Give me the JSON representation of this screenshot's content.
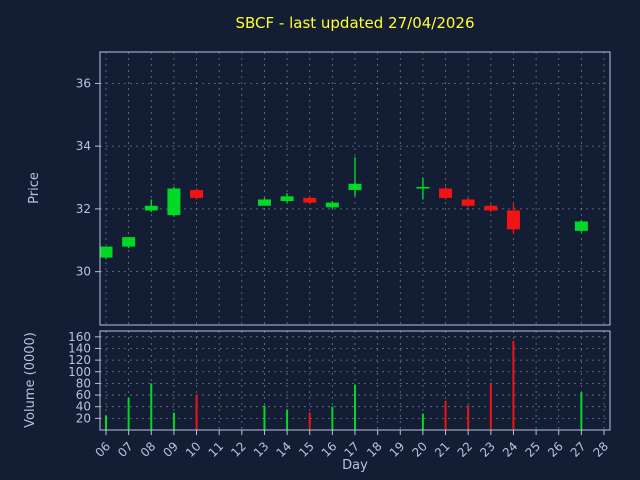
{
  "chart_data": {
    "type": "candlestick",
    "title": "SBCF - last updated 27/04/2026",
    "xlabel": "Day",
    "price_ylabel": "Price",
    "volume_ylabel": "Volume (0000)",
    "x_ticks": [
      "06",
      "07",
      "08",
      "09",
      "10",
      "11",
      "12",
      "13",
      "14",
      "15",
      "16",
      "17",
      "18",
      "19",
      "20",
      "21",
      "22",
      "23",
      "24",
      "25",
      "26",
      "27",
      "28"
    ],
    "price_ticks": [
      30,
      32,
      34,
      36
    ],
    "price_ylim": [
      28.3,
      37.0
    ],
    "volume_ticks": [
      20,
      40,
      60,
      80,
      100,
      120,
      140,
      160
    ],
    "volume_ylim": [
      0,
      170
    ],
    "grid": "dashed",
    "legend": null,
    "colors": {
      "background": "#131d33",
      "up": "#00d926",
      "down": "#f01414",
      "grid": "#8d96ab",
      "spine": "#b9c2de",
      "text": "#b9c2de",
      "title": "#ffff33"
    },
    "candles": [
      {
        "day": "06",
        "open": 30.45,
        "high": 30.8,
        "low": 30.4,
        "close": 30.8,
        "volume": 25
      },
      {
        "day": "07",
        "open": 30.8,
        "high": 31.1,
        "low": 30.75,
        "close": 31.1,
        "volume": 55
      },
      {
        "day": "08",
        "open": 31.95,
        "high": 32.3,
        "low": 31.9,
        "close": 32.1,
        "volume": 80
      },
      {
        "day": "09",
        "open": 31.8,
        "high": 32.7,
        "low": 31.75,
        "close": 32.65,
        "volume": 30
      },
      {
        "day": "10",
        "open": 32.6,
        "high": 32.65,
        "low": 32.3,
        "close": 32.35,
        "volume": 60
      },
      {
        "day": "13",
        "open": 32.1,
        "high": 32.35,
        "low": 32.1,
        "close": 32.3,
        "volume": 42
      },
      {
        "day": "14",
        "open": 32.25,
        "high": 32.5,
        "low": 32.2,
        "close": 32.4,
        "volume": 35
      },
      {
        "day": "15",
        "open": 32.35,
        "high": 32.4,
        "low": 32.15,
        "close": 32.2,
        "volume": 30
      },
      {
        "day": "16",
        "open": 32.05,
        "high": 32.25,
        "low": 32.0,
        "close": 32.2,
        "volume": 40
      },
      {
        "day": "17",
        "open": 32.6,
        "high": 33.65,
        "low": 32.4,
        "close": 32.8,
        "volume": 78
      },
      {
        "day": "20",
        "open": 32.65,
        "high": 33.0,
        "low": 32.3,
        "close": 32.7,
        "volume": 28
      },
      {
        "day": "21",
        "open": 32.65,
        "high": 32.7,
        "low": 32.3,
        "close": 32.35,
        "volume": 50
      },
      {
        "day": "22",
        "open": 32.3,
        "high": 32.35,
        "low": 32.05,
        "close": 32.1,
        "volume": 42
      },
      {
        "day": "23",
        "open": 32.1,
        "high": 32.15,
        "low": 31.9,
        "close": 31.95,
        "volume": 80
      },
      {
        "day": "24",
        "open": 31.95,
        "high": 32.15,
        "low": 31.2,
        "close": 31.35,
        "volume": 153
      },
      {
        "day": "27",
        "open": 31.3,
        "high": 31.65,
        "low": 31.25,
        "close": 31.6,
        "volume": 65
      }
    ]
  }
}
